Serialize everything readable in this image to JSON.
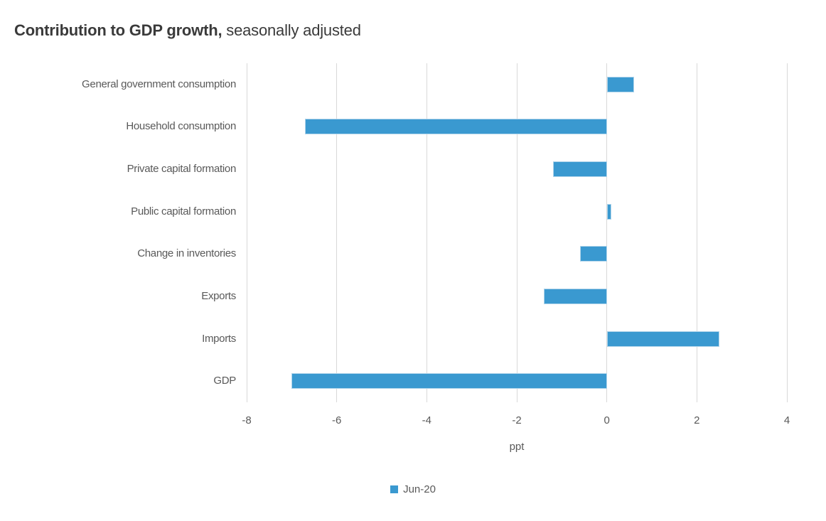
{
  "title": {
    "bold": "Contribution to GDP growth,",
    "regular": "seasonally adjusted"
  },
  "chart_data": {
    "type": "bar",
    "orientation": "horizontal",
    "title": "Contribution to GDP growth, seasonally adjusted",
    "categories": [
      "General government consumption",
      "Household consumption",
      "Private capital formation",
      "Public capital formation",
      "Change in inventories",
      "Exports",
      "Imports",
      "GDP"
    ],
    "series": [
      {
        "name": "Jun-20",
        "color": "#3A99D0",
        "values": [
          0.6,
          -6.7,
          -1.2,
          0.1,
          -0.6,
          -1.4,
          2.5,
          -7.0
        ]
      }
    ],
    "xlabel": "ppt",
    "ylabel": "",
    "xlim": [
      -8,
      4
    ],
    "x_ticks": [
      -8,
      -6,
      -4,
      -2,
      0,
      2,
      4
    ],
    "grid": "vertical",
    "legend_position": "bottom-center"
  },
  "colors": {
    "bar": "#3A99D0",
    "bar_border": "#B0D4EA",
    "gridline": "#D9D9D9",
    "label_text": "#595959",
    "title_text": "#3A3A3A",
    "background": "#FFFFFF"
  }
}
